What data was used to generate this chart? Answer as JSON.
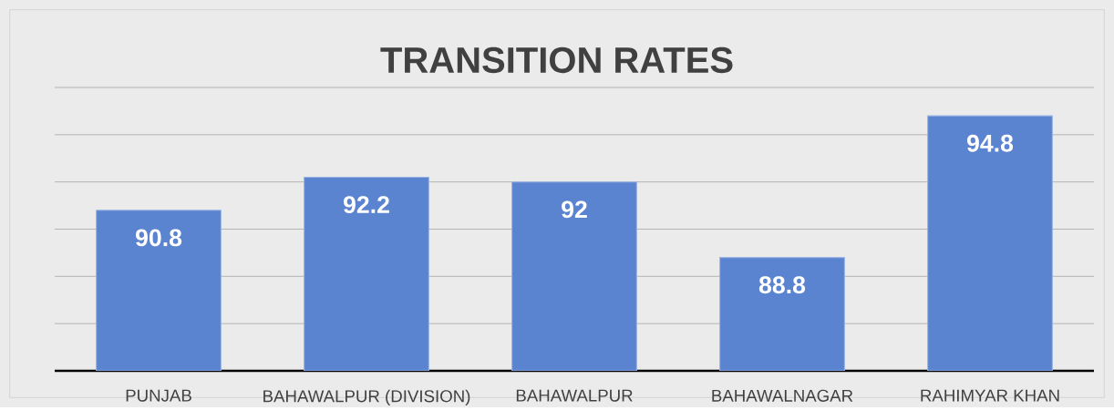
{
  "chart_data": {
    "type": "bar",
    "title": "TRANSITION RATES",
    "categories": [
      "PUNJAB",
      "BAHAWALPUR (DIVISION)",
      "BAHAWALPUR",
      "BAHAWALNAGAR",
      "RAHIMYAR KHAN"
    ],
    "values": [
      90.8,
      92.2,
      92,
      88.8,
      94.8
    ],
    "color": "#5b84d0",
    "data_labels": true,
    "ylim": [
      84,
      96
    ],
    "yticks": [
      {
        "value": 84,
        "label": null
      },
      {
        "value": 86,
        "label": null
      },
      {
        "value": 88,
        "label": null
      },
      {
        "value": 90,
        "label": null
      },
      {
        "value": 92,
        "label": null
      },
      {
        "value": 94,
        "label": null
      },
      {
        "value": 96,
        "label": null
      }
    ],
    "grid": "y",
    "tick_labels": "x"
  }
}
